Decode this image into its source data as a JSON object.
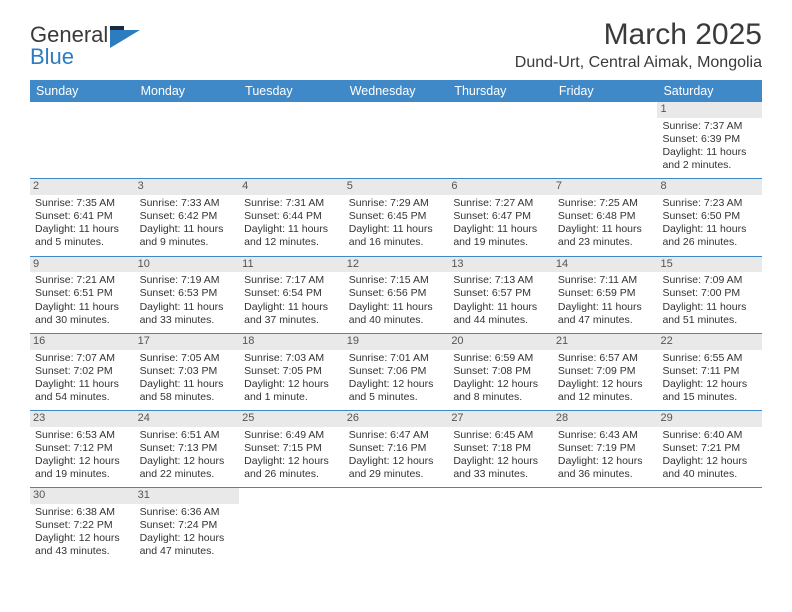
{
  "logo": {
    "name1": "General",
    "name2": "Blue"
  },
  "title": "March 2025",
  "location": "Dund-Urt, Central Aimak, Mongolia",
  "weekdays": [
    "Sunday",
    "Monday",
    "Tuesday",
    "Wednesday",
    "Thursday",
    "Friday",
    "Saturday"
  ],
  "colors": {
    "header_bg": "#3f89c8",
    "header_text": "#ffffff",
    "daynum_bg": "#e9e9e9",
    "border": "#3f89c8",
    "logo_blue": "#2e7cc0"
  },
  "weeks": [
    [
      null,
      null,
      null,
      null,
      null,
      null,
      {
        "n": "1",
        "sunrise": "Sunrise: 7:37 AM",
        "sunset": "Sunset: 6:39 PM",
        "daylight": "Daylight: 11 hours and 2 minutes."
      }
    ],
    [
      {
        "n": "2",
        "sunrise": "Sunrise: 7:35 AM",
        "sunset": "Sunset: 6:41 PM",
        "daylight": "Daylight: 11 hours and 5 minutes."
      },
      {
        "n": "3",
        "sunrise": "Sunrise: 7:33 AM",
        "sunset": "Sunset: 6:42 PM",
        "daylight": "Daylight: 11 hours and 9 minutes."
      },
      {
        "n": "4",
        "sunrise": "Sunrise: 7:31 AM",
        "sunset": "Sunset: 6:44 PM",
        "daylight": "Daylight: 11 hours and 12 minutes."
      },
      {
        "n": "5",
        "sunrise": "Sunrise: 7:29 AM",
        "sunset": "Sunset: 6:45 PM",
        "daylight": "Daylight: 11 hours and 16 minutes."
      },
      {
        "n": "6",
        "sunrise": "Sunrise: 7:27 AM",
        "sunset": "Sunset: 6:47 PM",
        "daylight": "Daylight: 11 hours and 19 minutes."
      },
      {
        "n": "7",
        "sunrise": "Sunrise: 7:25 AM",
        "sunset": "Sunset: 6:48 PM",
        "daylight": "Daylight: 11 hours and 23 minutes."
      },
      {
        "n": "8",
        "sunrise": "Sunrise: 7:23 AM",
        "sunset": "Sunset: 6:50 PM",
        "daylight": "Daylight: 11 hours and 26 minutes."
      }
    ],
    [
      {
        "n": "9",
        "sunrise": "Sunrise: 7:21 AM",
        "sunset": "Sunset: 6:51 PM",
        "daylight": "Daylight: 11 hours and 30 minutes."
      },
      {
        "n": "10",
        "sunrise": "Sunrise: 7:19 AM",
        "sunset": "Sunset: 6:53 PM",
        "daylight": "Daylight: 11 hours and 33 minutes."
      },
      {
        "n": "11",
        "sunrise": "Sunrise: 7:17 AM",
        "sunset": "Sunset: 6:54 PM",
        "daylight": "Daylight: 11 hours and 37 minutes."
      },
      {
        "n": "12",
        "sunrise": "Sunrise: 7:15 AM",
        "sunset": "Sunset: 6:56 PM",
        "daylight": "Daylight: 11 hours and 40 minutes."
      },
      {
        "n": "13",
        "sunrise": "Sunrise: 7:13 AM",
        "sunset": "Sunset: 6:57 PM",
        "daylight": "Daylight: 11 hours and 44 minutes."
      },
      {
        "n": "14",
        "sunrise": "Sunrise: 7:11 AM",
        "sunset": "Sunset: 6:59 PM",
        "daylight": "Daylight: 11 hours and 47 minutes."
      },
      {
        "n": "15",
        "sunrise": "Sunrise: 7:09 AM",
        "sunset": "Sunset: 7:00 PM",
        "daylight": "Daylight: 11 hours and 51 minutes."
      }
    ],
    [
      {
        "n": "16",
        "sunrise": "Sunrise: 7:07 AM",
        "sunset": "Sunset: 7:02 PM",
        "daylight": "Daylight: 11 hours and 54 minutes."
      },
      {
        "n": "17",
        "sunrise": "Sunrise: 7:05 AM",
        "sunset": "Sunset: 7:03 PM",
        "daylight": "Daylight: 11 hours and 58 minutes."
      },
      {
        "n": "18",
        "sunrise": "Sunrise: 7:03 AM",
        "sunset": "Sunset: 7:05 PM",
        "daylight": "Daylight: 12 hours and 1 minute."
      },
      {
        "n": "19",
        "sunrise": "Sunrise: 7:01 AM",
        "sunset": "Sunset: 7:06 PM",
        "daylight": "Daylight: 12 hours and 5 minutes."
      },
      {
        "n": "20",
        "sunrise": "Sunrise: 6:59 AM",
        "sunset": "Sunset: 7:08 PM",
        "daylight": "Daylight: 12 hours and 8 minutes."
      },
      {
        "n": "21",
        "sunrise": "Sunrise: 6:57 AM",
        "sunset": "Sunset: 7:09 PM",
        "daylight": "Daylight: 12 hours and 12 minutes."
      },
      {
        "n": "22",
        "sunrise": "Sunrise: 6:55 AM",
        "sunset": "Sunset: 7:11 PM",
        "daylight": "Daylight: 12 hours and 15 minutes."
      }
    ],
    [
      {
        "n": "23",
        "sunrise": "Sunrise: 6:53 AM",
        "sunset": "Sunset: 7:12 PM",
        "daylight": "Daylight: 12 hours and 19 minutes."
      },
      {
        "n": "24",
        "sunrise": "Sunrise: 6:51 AM",
        "sunset": "Sunset: 7:13 PM",
        "daylight": "Daylight: 12 hours and 22 minutes."
      },
      {
        "n": "25",
        "sunrise": "Sunrise: 6:49 AM",
        "sunset": "Sunset: 7:15 PM",
        "daylight": "Daylight: 12 hours and 26 minutes."
      },
      {
        "n": "26",
        "sunrise": "Sunrise: 6:47 AM",
        "sunset": "Sunset: 7:16 PM",
        "daylight": "Daylight: 12 hours and 29 minutes."
      },
      {
        "n": "27",
        "sunrise": "Sunrise: 6:45 AM",
        "sunset": "Sunset: 7:18 PM",
        "daylight": "Daylight: 12 hours and 33 minutes."
      },
      {
        "n": "28",
        "sunrise": "Sunrise: 6:43 AM",
        "sunset": "Sunset: 7:19 PM",
        "daylight": "Daylight: 12 hours and 36 minutes."
      },
      {
        "n": "29",
        "sunrise": "Sunrise: 6:40 AM",
        "sunset": "Sunset: 7:21 PM",
        "daylight": "Daylight: 12 hours and 40 minutes."
      }
    ],
    [
      {
        "n": "30",
        "sunrise": "Sunrise: 6:38 AM",
        "sunset": "Sunset: 7:22 PM",
        "daylight": "Daylight: 12 hours and 43 minutes."
      },
      {
        "n": "31",
        "sunrise": "Sunrise: 6:36 AM",
        "sunset": "Sunset: 7:24 PM",
        "daylight": "Daylight: 12 hours and 47 minutes."
      },
      null,
      null,
      null,
      null,
      null
    ]
  ]
}
